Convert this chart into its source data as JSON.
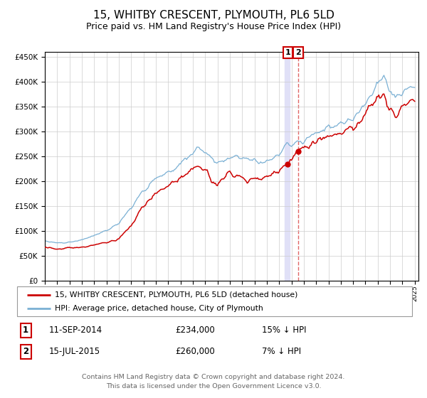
{
  "title": "15, WHITBY CRESCENT, PLYMOUTH, PL6 5LD",
  "subtitle": "Price paid vs. HM Land Registry's House Price Index (HPI)",
  "title_fontsize": 11,
  "subtitle_fontsize": 9,
  "background_color": "#ffffff",
  "plot_bg_color": "#ffffff",
  "grid_color": "#cccccc",
  "red_color": "#cc0000",
  "blue_color": "#7ab0d4",
  "legend1_label": "15, WHITBY CRESCENT, PLYMOUTH, PL6 5LD (detached house)",
  "legend2_label": "HPI: Average price, detached house, City of Plymouth",
  "annotation1_date_str": "11-SEP-2014",
  "annotation1_price": 234000,
  "annotation1_hpi_diff": "15% ↓ HPI",
  "annotation2_date_str": "15-JUL-2015",
  "annotation2_price": 260000,
  "annotation2_hpi_diff": "7% ↓ HPI",
  "footnote1": "Contains HM Land Registry data © Crown copyright and database right 2024.",
  "footnote2": "This data is licensed under the Open Government Licence v3.0.",
  "vline1_x": 2014.708,
  "vline2_x": 2015.542,
  "sale1_x": 2014.708,
  "sale1_y": 234000,
  "sale2_x": 2015.542,
  "sale2_y": 260000,
  "ylim": [
    0,
    460000
  ],
  "xlim": [
    1995.0,
    2025.3
  ]
}
